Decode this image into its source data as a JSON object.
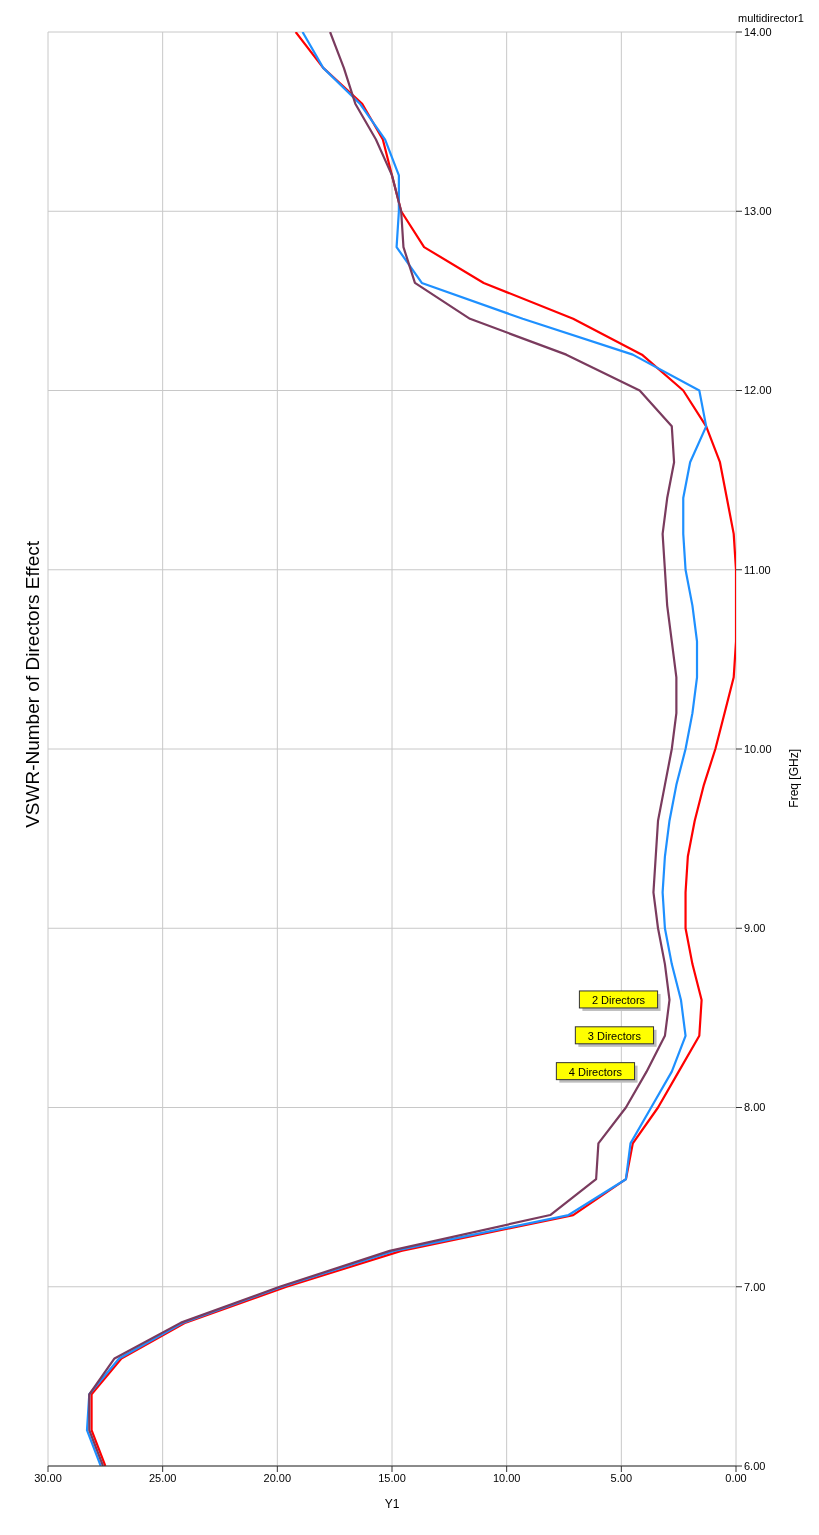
{
  "chart_data": {
    "type": "line",
    "title": "VSWR-Number of Directors Effect",
    "xlabel": "Y1",
    "ylabel": "Freq [GHz]",
    "annotations": [
      "multidirector1"
    ],
    "series": [
      {
        "name": "2 Directors",
        "color": "#ff0000",
        "x": [
          27.5,
          28.1,
          28.1,
          26.8,
          24.0,
          19.6,
          14.6,
          7.1,
          4.8,
          4.5,
          3.4,
          2.5,
          1.6,
          1.5,
          1.9,
          2.2,
          2.2,
          2.1,
          1.8,
          1.4,
          0.9,
          0.5,
          0.1,
          0,
          0,
          0,
          0.1,
          0.4,
          0.7,
          1.3,
          2.3,
          4.1,
          7.1,
          11.0,
          13.6,
          14.6,
          15.0,
          15.4,
          16.3,
          18.0,
          19.2
        ],
        "values": [
          6.0,
          6.2,
          6.4,
          6.6,
          6.8,
          7.0,
          7.2,
          7.4,
          7.6,
          7.8,
          8.0,
          8.2,
          8.4,
          8.6,
          8.8,
          9.0,
          9.2,
          9.4,
          9.6,
          9.8,
          10.0,
          10.2,
          10.4,
          10.6,
          10.8,
          11.0,
          11.2,
          11.4,
          11.6,
          11.8,
          12.0,
          12.2,
          12.4,
          12.6,
          12.8,
          13.0,
          13.2,
          13.4,
          13.6,
          13.8,
          14.0
        ]
      },
      {
        "name": "3 Directors",
        "color": "#1e90ff",
        "x": [
          27.7,
          28.3,
          28.2,
          26.9,
          24.1,
          19.8,
          14.9,
          7.3,
          4.8,
          4.6,
          3.7,
          2.8,
          2.2,
          2.4,
          2.8,
          3.1,
          3.2,
          3.1,
          2.9,
          2.6,
          2.2,
          1.9,
          1.7,
          1.7,
          1.9,
          2.2,
          2.3,
          2.3,
          2.0,
          1.3,
          1.6,
          4.5,
          9.3,
          13.7,
          14.8,
          14.7,
          14.7,
          15.3,
          16.4,
          18.0,
          18.9
        ],
        "values": [
          6.0,
          6.2,
          6.4,
          6.6,
          6.8,
          7.0,
          7.2,
          7.4,
          7.6,
          7.8,
          8.0,
          8.2,
          8.4,
          8.6,
          8.8,
          9.0,
          9.2,
          9.4,
          9.6,
          9.8,
          10.0,
          10.2,
          10.4,
          10.6,
          10.8,
          11.0,
          11.2,
          11.4,
          11.6,
          11.8,
          12.0,
          12.2,
          12.4,
          12.6,
          12.8,
          13.0,
          13.2,
          13.4,
          13.6,
          13.8,
          14.0
        ]
      },
      {
        "name": "4 Directors",
        "color": "#7a3b5e",
        "x": [
          27.6,
          28.2,
          28.2,
          27.1,
          24.2,
          19.9,
          15.1,
          8.1,
          6.1,
          6.0,
          4.8,
          3.9,
          3.1,
          2.9,
          3.1,
          3.4,
          3.6,
          3.5,
          3.4,
          3.1,
          2.8,
          2.6,
          2.6,
          2.8,
          3.0,
          3.1,
          3.2,
          3.0,
          2.7,
          2.8,
          4.2,
          7.4,
          11.6,
          14.0,
          14.5,
          14.6,
          15.0,
          15.7,
          16.6,
          17.1,
          17.7
        ],
        "values": [
          6.0,
          6.2,
          6.4,
          6.6,
          6.8,
          7.0,
          7.2,
          7.4,
          7.6,
          7.8,
          8.0,
          8.2,
          8.4,
          8.6,
          8.8,
          9.0,
          9.2,
          9.4,
          9.6,
          9.8,
          10.0,
          10.2,
          10.4,
          10.6,
          10.8,
          11.0,
          11.2,
          11.4,
          11.6,
          11.8,
          12.0,
          12.2,
          12.4,
          12.6,
          12.8,
          13.0,
          13.2,
          13.4,
          13.6,
          13.8,
          14.0
        ]
      }
    ],
    "xlim": [
      30,
      0
    ],
    "xticks": [
      {
        "value": 30,
        "label": "30.00"
      },
      {
        "value": 25,
        "label": "25.00"
      },
      {
        "value": 20,
        "label": "20.00"
      },
      {
        "value": 15,
        "label": "15.00"
      },
      {
        "value": 10,
        "label": "10.00"
      },
      {
        "value": 5,
        "label": "5.00"
      },
      {
        "value": 0,
        "label": "0.00"
      }
    ],
    "ylim": [
      6,
      14
    ],
    "yticks": [
      {
        "value": 6,
        "label": "6.00"
      },
      {
        "value": 7,
        "label": "7.00"
      },
      {
        "value": 8,
        "label": "8.00"
      },
      {
        "value": 9,
        "label": "9.00"
      },
      {
        "value": 10,
        "label": "10.00"
      },
      {
        "value": 11,
        "label": "11.00"
      },
      {
        "value": 12,
        "label": "12.00"
      },
      {
        "value": 13,
        "label": "13.00"
      },
      {
        "value": 14,
        "label": "14.00"
      }
    ],
    "grid": true,
    "legend": false
  }
}
